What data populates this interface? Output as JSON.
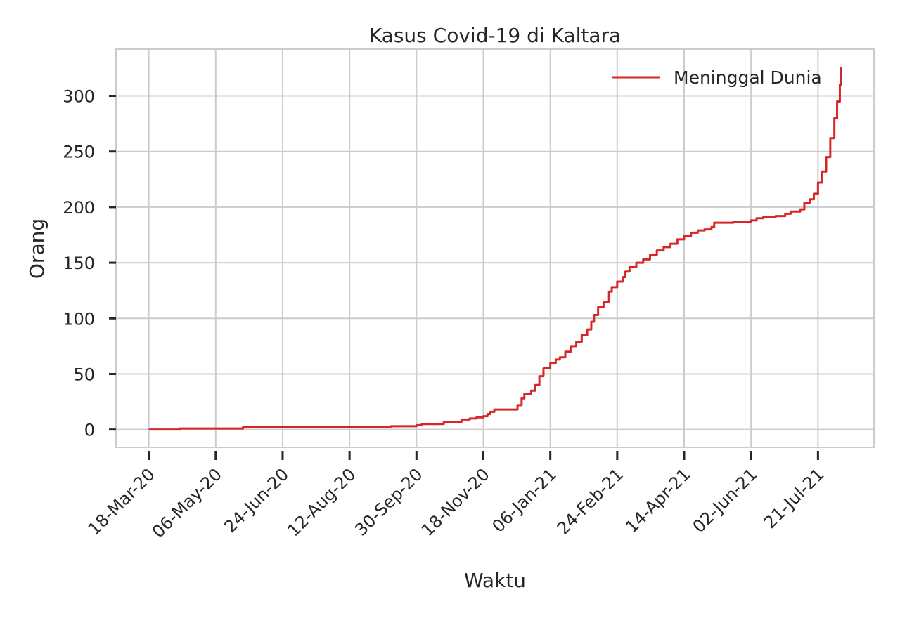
{
  "chart_data": {
    "type": "line",
    "title": "Kasus Covid-19 di Kaltara",
    "xlabel": "Waktu",
    "ylabel": "Orang",
    "x_ticks": [
      "18-Mar-20",
      "06-May-20",
      "24-Jun-20",
      "12-Aug-20",
      "30-Sep-20",
      "18-Nov-20",
      "06-Jan-21",
      "24-Feb-21",
      "14-Apr-21",
      "02-Jun-21",
      "21-Jul-21"
    ],
    "y_ticks": [
      0,
      50,
      100,
      150,
      200,
      250,
      300
    ],
    "xlim": [
      "2020-02-23",
      "2021-08-31"
    ],
    "ylim": [
      -16,
      342
    ],
    "grid": true,
    "legend_position": "top-right",
    "series": [
      {
        "name": "Meninggal Dunia",
        "color": "#d62728",
        "step": true,
        "points": [
          [
            "2020-03-18",
            0
          ],
          [
            "2020-04-10",
            1
          ],
          [
            "2020-05-26",
            2
          ],
          [
            "2020-08-12",
            2
          ],
          [
            "2020-09-11",
            3
          ],
          [
            "2020-09-30",
            4
          ],
          [
            "2020-10-04",
            5
          ],
          [
            "2020-10-20",
            7
          ],
          [
            "2020-11-02",
            9
          ],
          [
            "2020-11-08",
            10
          ],
          [
            "2020-11-13",
            11
          ],
          [
            "2020-11-18",
            12
          ],
          [
            "2020-11-21",
            14
          ],
          [
            "2020-11-23",
            16
          ],
          [
            "2020-11-26",
            18
          ],
          [
            "2020-12-05",
            18
          ],
          [
            "2020-12-13",
            22
          ],
          [
            "2020-12-16",
            28
          ],
          [
            "2020-12-18",
            32
          ],
          [
            "2020-12-23",
            35
          ],
          [
            "2020-12-26",
            40
          ],
          [
            "2020-12-29",
            48
          ],
          [
            "2021-01-01",
            55
          ],
          [
            "2021-01-06",
            60
          ],
          [
            "2021-01-10",
            63
          ],
          [
            "2021-01-13",
            65
          ],
          [
            "2021-01-17",
            70
          ],
          [
            "2021-01-21",
            75
          ],
          [
            "2021-01-25",
            79
          ],
          [
            "2021-01-29",
            85
          ],
          [
            "2021-02-02",
            90
          ],
          [
            "2021-02-05",
            97
          ],
          [
            "2021-02-07",
            103
          ],
          [
            "2021-02-10",
            110
          ],
          [
            "2021-02-14",
            115
          ],
          [
            "2021-02-18",
            124
          ],
          [
            "2021-02-20",
            128
          ],
          [
            "2021-02-24",
            133
          ],
          [
            "2021-02-28",
            137
          ],
          [
            "2021-03-02",
            142
          ],
          [
            "2021-03-05",
            146
          ],
          [
            "2021-03-10",
            150
          ],
          [
            "2021-03-15",
            153
          ],
          [
            "2021-03-20",
            157
          ],
          [
            "2021-03-25",
            161
          ],
          [
            "2021-03-30",
            164
          ],
          [
            "2021-04-04",
            167
          ],
          [
            "2021-04-09",
            171
          ],
          [
            "2021-04-14",
            174
          ],
          [
            "2021-04-19",
            177
          ],
          [
            "2021-04-24",
            179
          ],
          [
            "2021-04-29",
            180
          ],
          [
            "2021-05-04",
            182
          ],
          [
            "2021-05-06",
            186
          ],
          [
            "2021-05-20",
            187
          ],
          [
            "2021-06-02",
            188
          ],
          [
            "2021-06-06",
            190
          ],
          [
            "2021-06-11",
            191
          ],
          [
            "2021-06-20",
            192
          ],
          [
            "2021-06-27",
            194
          ],
          [
            "2021-07-01",
            196
          ],
          [
            "2021-07-08",
            198
          ],
          [
            "2021-07-11",
            204
          ],
          [
            "2021-07-15",
            207
          ],
          [
            "2021-07-18",
            212
          ],
          [
            "2021-07-21",
            222
          ],
          [
            "2021-07-24",
            232
          ],
          [
            "2021-07-27",
            245
          ],
          [
            "2021-07-30",
            262
          ],
          [
            "2021-08-02",
            280
          ],
          [
            "2021-08-04",
            295
          ],
          [
            "2021-08-06",
            310
          ],
          [
            "2021-08-07",
            326
          ]
        ]
      }
    ]
  }
}
